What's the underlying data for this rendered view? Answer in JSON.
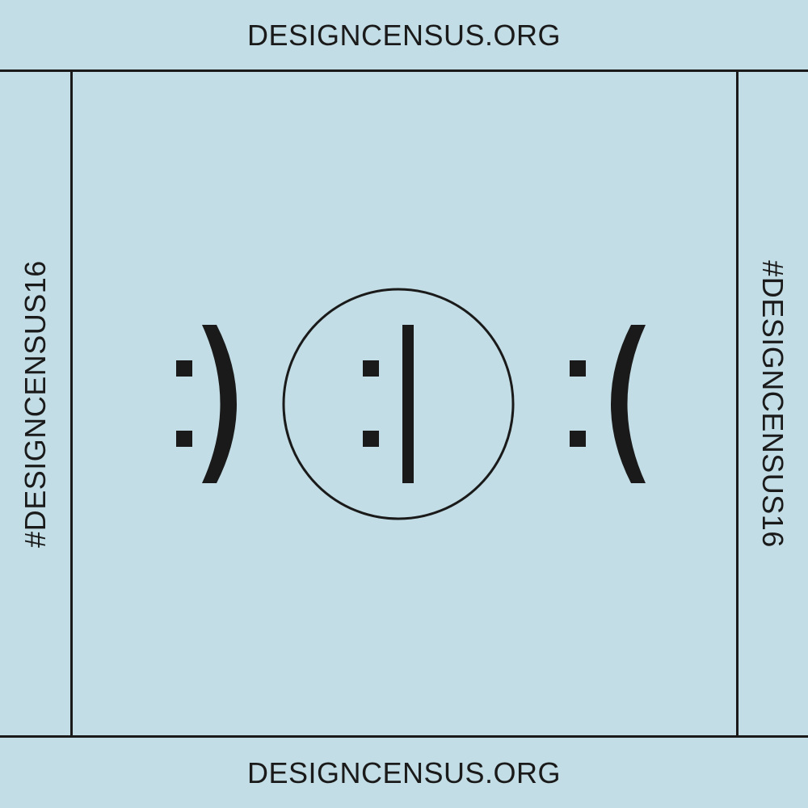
{
  "poster": {
    "url_top": "DESIGNCENSUS.ORG",
    "url_bottom": "DESIGNCENSUS.ORG",
    "hashtag_left": "#DESIGNCENSUS16",
    "hashtag_right": "#DESIGNCENSUS16",
    "colors": {
      "background": "#c2dde5",
      "ink": "#1a1a1a"
    },
    "icons": [
      "happy-face-icon",
      "neutral-face-icon",
      "sad-face-icon"
    ]
  }
}
